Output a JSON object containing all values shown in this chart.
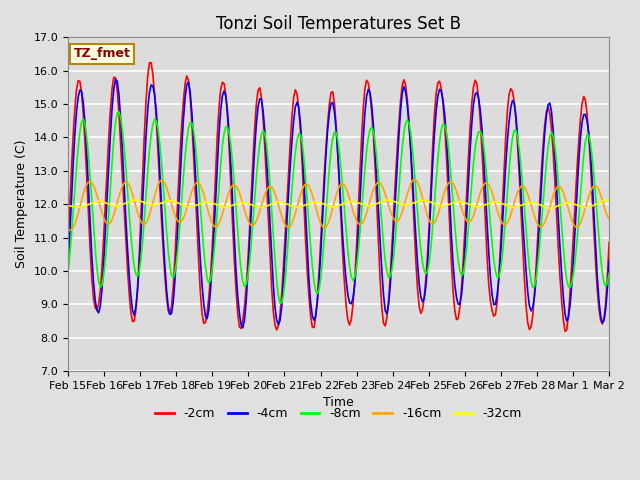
{
  "title": "Tonzi Soil Temperatures Set B",
  "xlabel": "Time",
  "ylabel": "Soil Temperature (C)",
  "ylim": [
    7.0,
    17.0
  ],
  "yticks": [
    7.0,
    8.0,
    9.0,
    10.0,
    11.0,
    12.0,
    13.0,
    14.0,
    15.0,
    16.0,
    17.0
  ],
  "xtick_labels": [
    "Feb 15",
    "Feb 16",
    "Feb 17",
    "Feb 18",
    "Feb 19",
    "Feb 20",
    "Feb 21",
    "Feb 22",
    "Feb 23",
    "Feb 24",
    "Feb 25",
    "Feb 26",
    "Feb 27",
    "Feb 28",
    "Mar 1",
    "Mar 2"
  ],
  "series_colors": [
    "red",
    "blue",
    "lime",
    "orange",
    "yellow"
  ],
  "series_labels": [
    "-2cm",
    "-4cm",
    "-8cm",
    "-16cm",
    "-32cm"
  ],
  "legend_label": "TZ_fmet",
  "title_fontsize": 12,
  "axis_fontsize": 8,
  "legend_fontsize": 9
}
